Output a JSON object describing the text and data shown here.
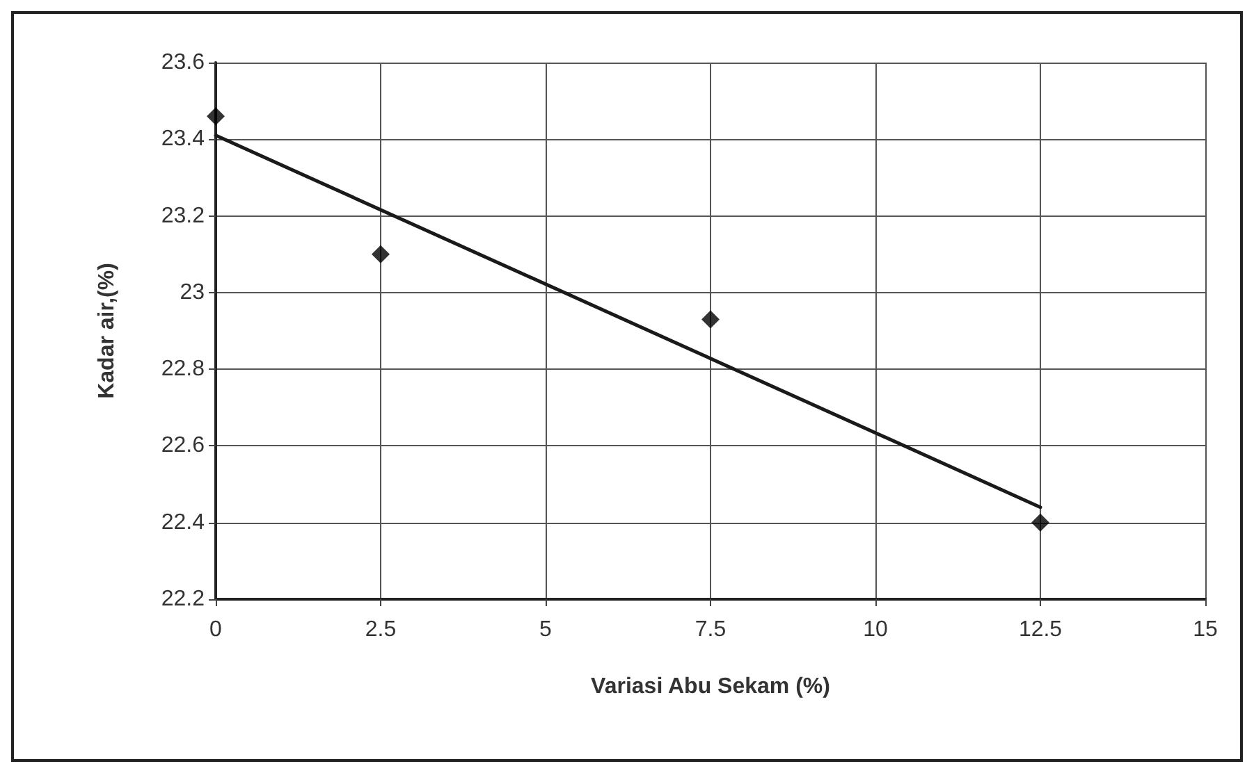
{
  "chart_data": {
    "type": "scatter",
    "xlabel": "Variasi Abu Sekam (%)",
    "ylabel": "Kadar air,(%)",
    "series": [
      {
        "color": "#000000",
        "x": [
          0,
          2.5,
          7.5,
          12.5
        ],
        "values": [
          23.46,
          23.1,
          22.93,
          22.4
        ],
        "marker": "diamond"
      },
      {
        "type": "line",
        "color": "#1a1a1a",
        "x": [
          0,
          12.5
        ],
        "values": [
          23.41,
          22.44
        ],
        "marker": "none",
        "line_style": "solid"
      }
    ],
    "xlim": [
      0,
      15
    ],
    "xticks": [
      0,
      2.5,
      5,
      7.5,
      10,
      12.5,
      15
    ],
    "ylim": [
      22.2,
      23.6
    ],
    "yticks": [
      22.2,
      22.4,
      22.6,
      22.8,
      23,
      23.2,
      23.4,
      23.6
    ],
    "grid": true
  }
}
